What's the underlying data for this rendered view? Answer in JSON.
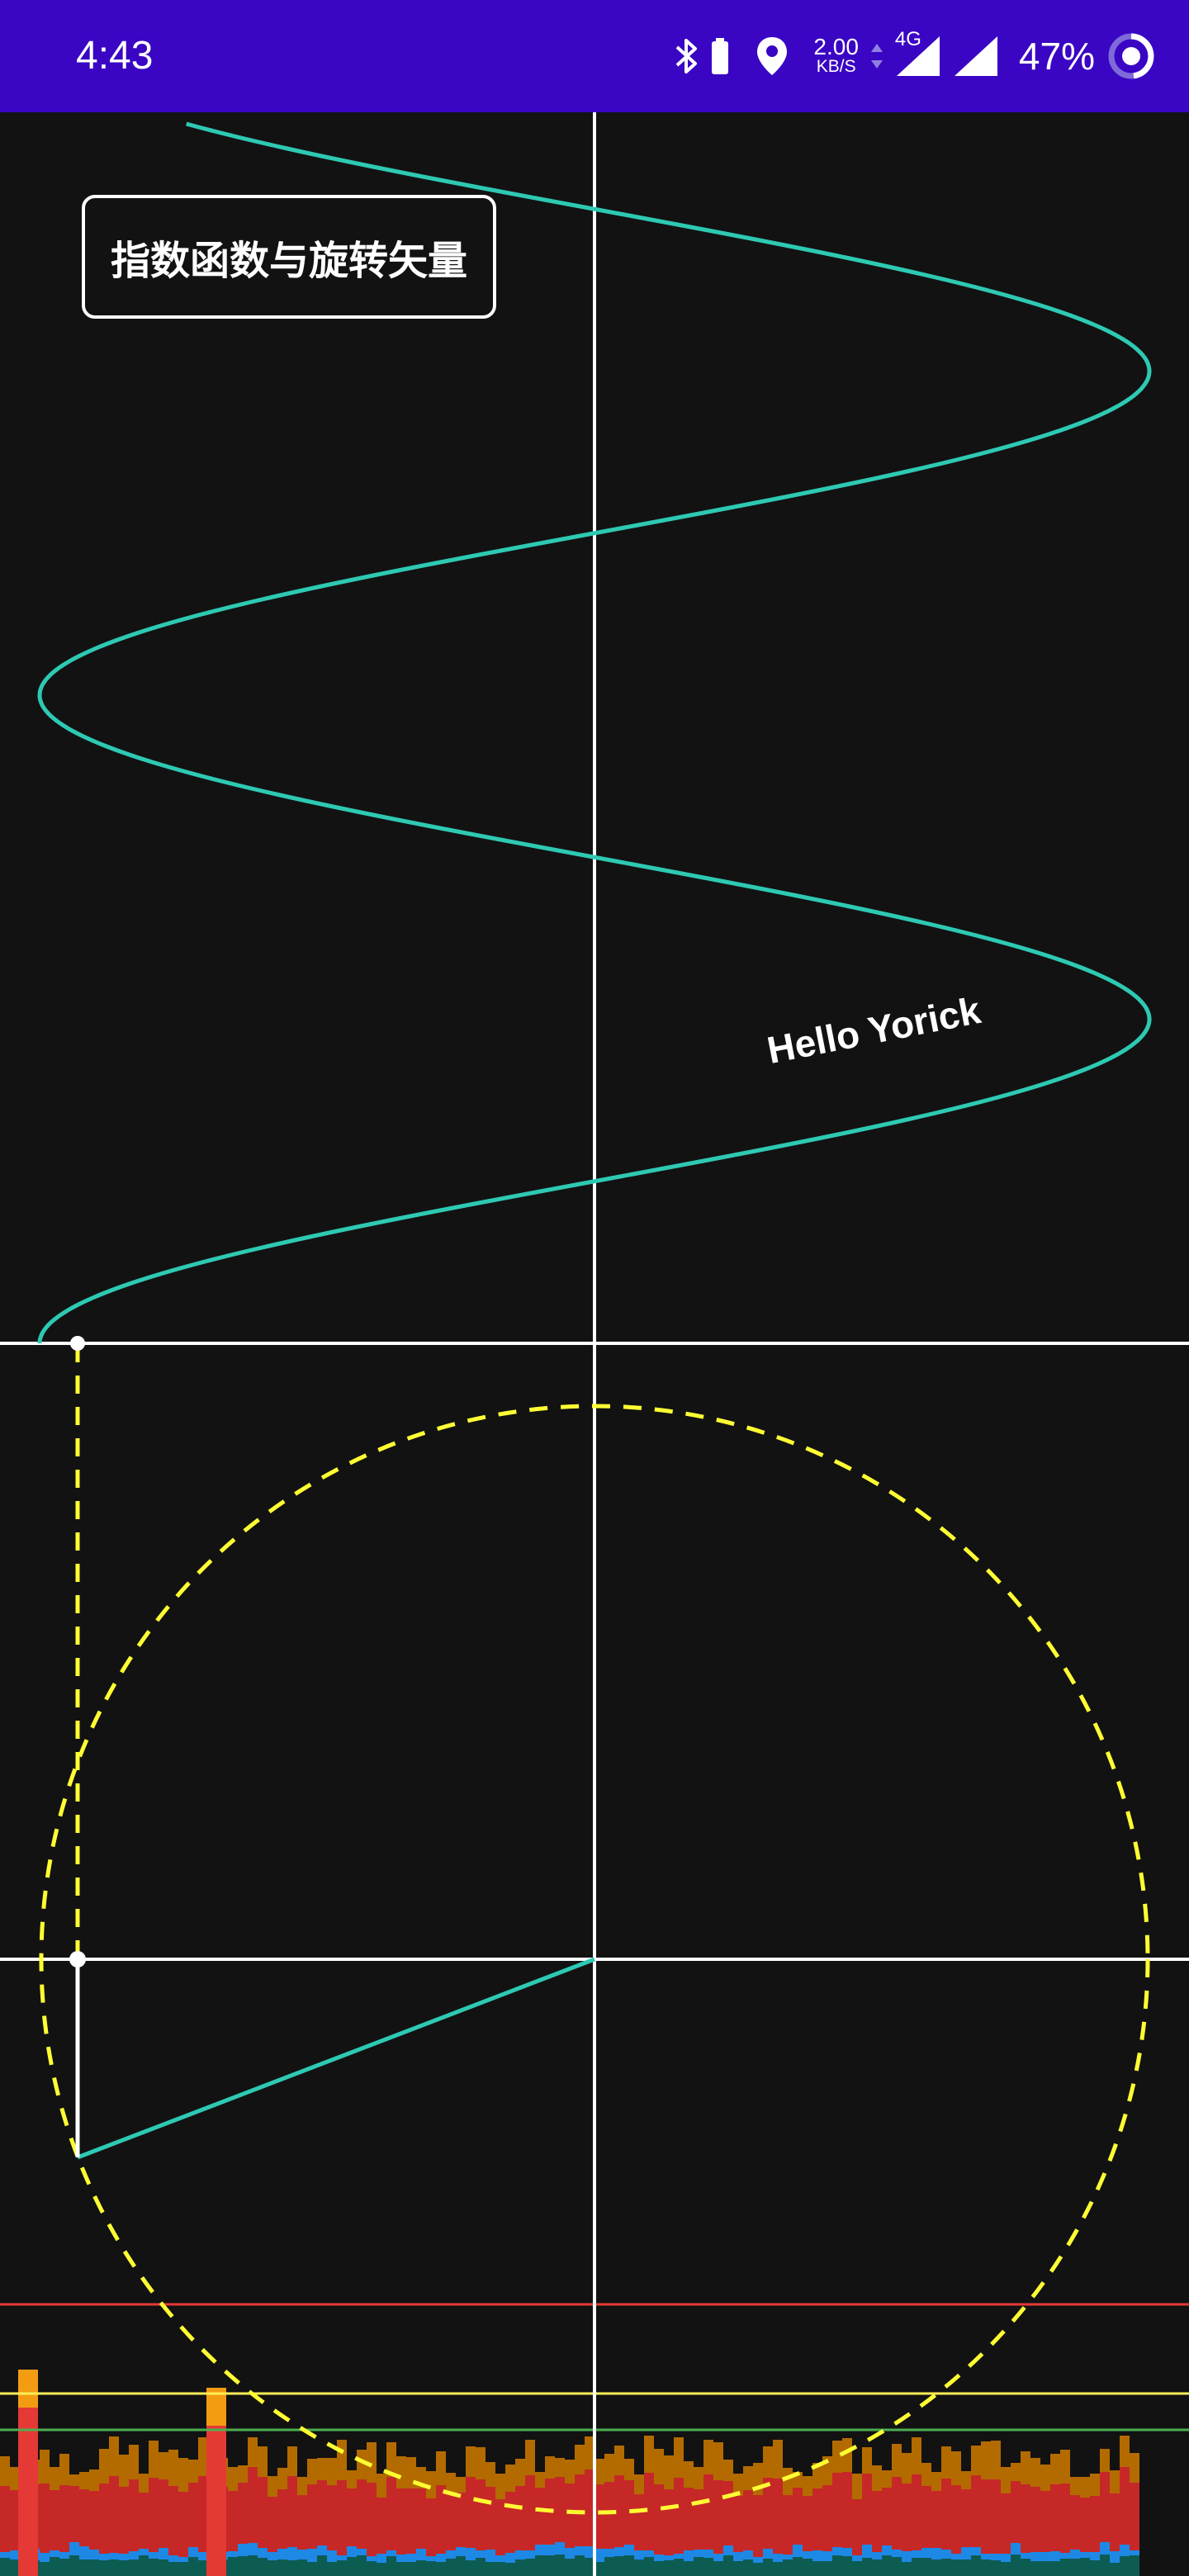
{
  "status_bar": {
    "time": "4:43",
    "net_speed_value": "2.00",
    "net_speed_unit": "KB/S",
    "network_type": "4G",
    "battery_percent": "47%",
    "icons": [
      "bluetooth-icon",
      "battery-saver-icon",
      "location-icon",
      "data-arrows-icon",
      "signal-icon",
      "signal-icon",
      "battery-ring-icon"
    ],
    "background": "#3a06c4"
  },
  "main": {
    "title": "指数函数与旋转矢量",
    "caption": "Hello Yorick"
  },
  "colors": {
    "background": "#121212",
    "curve": "#2ec9b3",
    "circle": "#ffff33",
    "axes": "#ffffff",
    "profile_red_line": "#e53935",
    "profile_yellow_line": "#ffee58",
    "profile_green_line": "#4caf50"
  }
}
